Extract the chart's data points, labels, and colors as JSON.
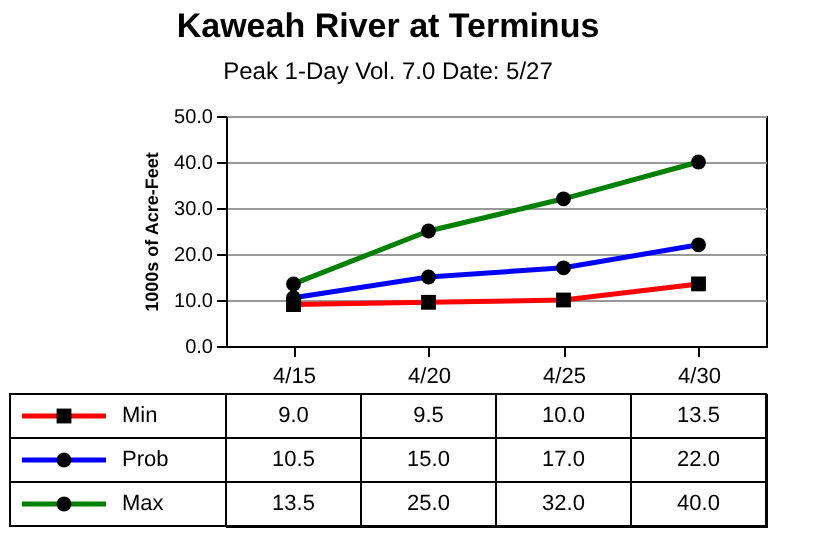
{
  "chart_data": {
    "type": "line",
    "title": "Kaweah River at Terminus",
    "subtitle": "Peak 1-Day Vol.   7.0   Date:   5/27",
    "ylabel": "1000s of Acre-Feet",
    "categories": [
      "4/15",
      "4/20",
      "4/25",
      "4/30"
    ],
    "series": [
      {
        "name": "Min",
        "color": "#ff0000",
        "marker": "square",
        "values": [
          9.0,
          9.5,
          10.0,
          13.5
        ],
        "value_labels": [
          "9.0",
          "9.5",
          "10.0",
          "13.5"
        ]
      },
      {
        "name": "Prob",
        "color": "#0000ff",
        "marker": "circle",
        "values": [
          10.5,
          15.0,
          17.0,
          22.0
        ],
        "value_labels": [
          "10.5",
          "15.0",
          "17.0",
          "22.0"
        ]
      },
      {
        "name": "Max",
        "color": "#008000",
        "marker": "circle",
        "values": [
          13.5,
          25.0,
          32.0,
          40.0
        ],
        "value_labels": [
          "13.5",
          "25.0",
          "32.0",
          "40.0"
        ]
      }
    ],
    "ylim": [
      0,
      50
    ],
    "yticks": [
      {
        "value": 0,
        "label": "0.0"
      },
      {
        "value": 10,
        "label": "10.0"
      },
      {
        "value": 20,
        "label": "20.0"
      },
      {
        "value": 30,
        "label": "30.0"
      },
      {
        "value": 40,
        "label": "40.0"
      },
      {
        "value": 50,
        "label": "50.0"
      }
    ],
    "grid": "y",
    "legend": "bottom left"
  }
}
